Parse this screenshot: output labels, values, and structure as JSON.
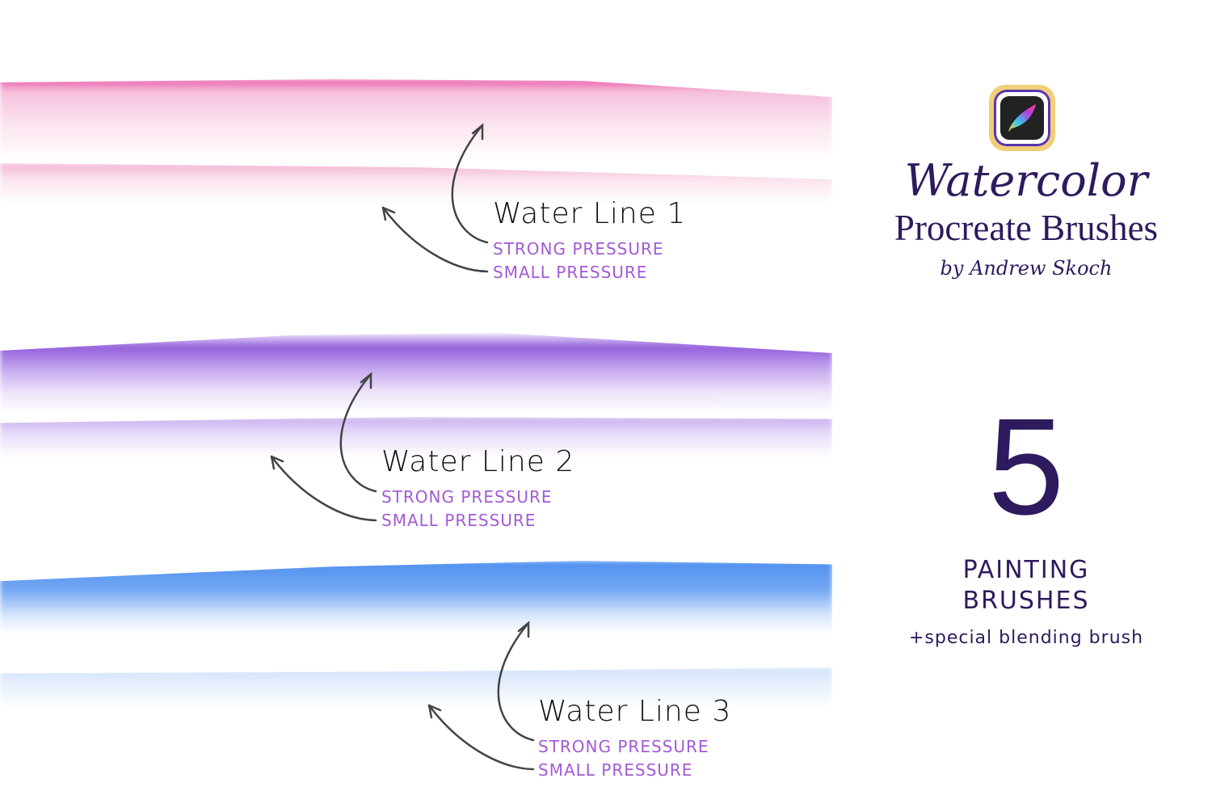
{
  "brand": {
    "app_icon": "procreate-app-icon",
    "script_title": "Watercolor",
    "title": "Procreate Brushes",
    "byline": "by Andrew Skoch",
    "count": "5",
    "count_label_1": "PAINTING",
    "count_label_2": "BRUSHES",
    "extra": "+special blending brush",
    "color": "#2e1a5e"
  },
  "lines": [
    {
      "title": "Water Line 1",
      "strong": "STRONG PRESSURE",
      "small": "SMALL PRESSURE",
      "color": "#e8439a"
    },
    {
      "title": "Water Line 2",
      "strong": "STRONG PRESSURE",
      "small": "SMALL PRESSURE",
      "color": "#8a4fd8"
    },
    {
      "title": "Water Line 3",
      "strong": "STRONG PRESSURE",
      "small": "SMALL PRESSURE",
      "color": "#4a8ef0"
    }
  ]
}
